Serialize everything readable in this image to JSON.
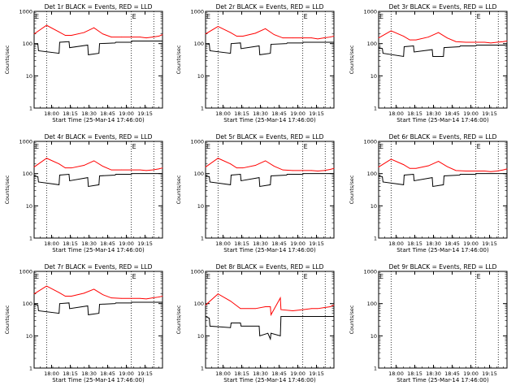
{
  "colors": {
    "events": "#000000",
    "lld": "#ff0000",
    "axis": "#000000"
  },
  "common": {
    "xlabel": "Start Time (25-Mar-14 17:46:00)",
    "ylabel": "Counts/sec",
    "x_ticks": [
      "18:00",
      "18:15",
      "18:30",
      "18:45",
      "19:00",
      "19:15"
    ],
    "y_ticks": [
      "1",
      "10",
      "100",
      "1000"
    ],
    "yscale": "log",
    "ylim": [
      1,
      1000
    ],
    "xlim_minutes_after_start": [
      0,
      103
    ],
    "event_marker": "E",
    "event_marker_times_minutes_after_start": [
      0,
      78
    ],
    "dotted_vline_times_minutes_after_start": [
      10,
      78,
      96
    ]
  },
  "chart_data": [
    {
      "type": "line",
      "title": "Det 1r BLACK = Events, RED = LLD",
      "series": [
        {
          "color": "red",
          "x": [
            0,
            10,
            20,
            25,
            30,
            40,
            48,
            55,
            62,
            70,
            78,
            85,
            90,
            95,
            100,
            103
          ],
          "values": [
            200,
            370,
            230,
            180,
            180,
            220,
            310,
            200,
            160,
            160,
            160,
            160,
            150,
            160,
            170,
            190
          ]
        },
        {
          "color": "black",
          "x": [
            0,
            3,
            3.5,
            20,
            20.5,
            28,
            28.5,
            43,
            43.5,
            52,
            52.5,
            65,
            65.5,
            78,
            78.5,
            103
          ],
          "values": [
            100,
            95,
            60,
            50,
            110,
            115,
            75,
            90,
            45,
            50,
            100,
            105,
            110,
            110,
            120,
            120
          ]
        }
      ]
    },
    {
      "type": "line",
      "title": "Det 2r BLACK = Events, RED = LLD",
      "series": [
        {
          "color": "red",
          "x": [
            0,
            10,
            20,
            25,
            30,
            40,
            48,
            55,
            62,
            70,
            78,
            85,
            90,
            95,
            100,
            103
          ],
          "values": [
            200,
            340,
            220,
            170,
            170,
            210,
            290,
            190,
            150,
            150,
            150,
            150,
            140,
            150,
            160,
            170
          ]
        },
        {
          "color": "black",
          "x": [
            0,
            3,
            3.5,
            20,
            20.5,
            28,
            28.5,
            43,
            43.5,
            52,
            52.5,
            65,
            65.5,
            78,
            78.5,
            103
          ],
          "values": [
            100,
            95,
            60,
            50,
            100,
            105,
            70,
            85,
            45,
            50,
            95,
            100,
            105,
            105,
            110,
            110
          ]
        }
      ]
    },
    {
      "type": "line",
      "title": "Det 3r BLACK = Events, RED = LLD",
      "series": [
        {
          "color": "red",
          "x": [
            0,
            10,
            20,
            25,
            30,
            40,
            48,
            55,
            62,
            70,
            78,
            85,
            90,
            95,
            100,
            103
          ],
          "values": [
            150,
            250,
            170,
            130,
            130,
            160,
            220,
            150,
            115,
            110,
            110,
            110,
            105,
            110,
            115,
            120
          ]
        },
        {
          "color": "black",
          "x": [
            0,
            3,
            3.5,
            20,
            20.5,
            28,
            28.5,
            43,
            43.5,
            52,
            52.5,
            65,
            65.5,
            78,
            78.5,
            103
          ],
          "values": [
            75,
            70,
            50,
            40,
            80,
            85,
            55,
            65,
            40,
            40,
            75,
            80,
            85,
            85,
            90,
            90
          ]
        }
      ]
    },
    {
      "type": "line",
      "title": "Det 4r BLACK = Events, RED = LLD",
      "series": [
        {
          "color": "red",
          "x": [
            0,
            10,
            20,
            25,
            30,
            40,
            48,
            55,
            62,
            70,
            78,
            85,
            90,
            95,
            100,
            103
          ],
          "values": [
            160,
            300,
            200,
            150,
            150,
            180,
            250,
            170,
            130,
            130,
            130,
            130,
            125,
            130,
            140,
            150
          ]
        },
        {
          "color": "black",
          "x": [
            0,
            3,
            3.5,
            20,
            20.5,
            28,
            28.5,
            43,
            43.5,
            52,
            52.5,
            65,
            65.5,
            78,
            78.5,
            103
          ],
          "values": [
            85,
            80,
            55,
            45,
            90,
            95,
            60,
            75,
            40,
            45,
            85,
            90,
            95,
            95,
            100,
            100
          ]
        }
      ]
    },
    {
      "type": "line",
      "title": "Det 5r BLACK = Events, RED = LLD",
      "series": [
        {
          "color": "red",
          "x": [
            0,
            10,
            20,
            25,
            30,
            40,
            48,
            55,
            62,
            70,
            78,
            85,
            90,
            95,
            100,
            103
          ],
          "values": [
            160,
            300,
            200,
            150,
            150,
            180,
            250,
            170,
            130,
            125,
            125,
            125,
            120,
            125,
            135,
            145
          ]
        },
        {
          "color": "black",
          "x": [
            0,
            3,
            3.5,
            20,
            20.5,
            28,
            28.5,
            43,
            43.5,
            52,
            52.5,
            65,
            65.5,
            78,
            78.5,
            103
          ],
          "values": [
            85,
            80,
            55,
            45,
            90,
            95,
            60,
            75,
            40,
            45,
            85,
            90,
            95,
            95,
            100,
            100
          ]
        }
      ]
    },
    {
      "type": "line",
      "title": "Det 6r BLACK = Events, RED = LLD",
      "series": [
        {
          "color": "red",
          "x": [
            0,
            10,
            20,
            25,
            30,
            40,
            48,
            55,
            62,
            70,
            78,
            85,
            90,
            95,
            100,
            103
          ],
          "values": [
            160,
            280,
            190,
            145,
            145,
            175,
            240,
            165,
            125,
            120,
            120,
            120,
            115,
            120,
            130,
            140
          ]
        },
        {
          "color": "black",
          "x": [
            0,
            3,
            3.5,
            20,
            20.5,
            28,
            28.5,
            43,
            43.5,
            52,
            52.5,
            65,
            65.5,
            78,
            78.5,
            103
          ],
          "values": [
            85,
            80,
            55,
            45,
            90,
            95,
            60,
            75,
            40,
            45,
            85,
            90,
            95,
            95,
            100,
            100
          ]
        }
      ]
    },
    {
      "type": "line",
      "title": "Det 7r BLACK = Events, RED = LLD",
      "series": [
        {
          "color": "red",
          "x": [
            0,
            10,
            20,
            25,
            30,
            40,
            48,
            55,
            62,
            70,
            78,
            85,
            90,
            95,
            100,
            103
          ],
          "values": [
            200,
            350,
            220,
            170,
            170,
            210,
            280,
            190,
            150,
            145,
            145,
            145,
            140,
            150,
            160,
            170
          ]
        },
        {
          "color": "black",
          "x": [
            0,
            3,
            3.5,
            20,
            20.5,
            28,
            28.5,
            43,
            43.5,
            52,
            52.5,
            65,
            65.5,
            78,
            78.5,
            103
          ],
          "values": [
            95,
            90,
            60,
            50,
            100,
            105,
            70,
            85,
            45,
            50,
            95,
            100,
            105,
            105,
            110,
            110
          ]
        }
      ]
    },
    {
      "type": "line",
      "title": "Det 8r BLACK = Events, RED = LLD",
      "series": [
        {
          "color": "red",
          "x": [
            0,
            10,
            20,
            28,
            40,
            48,
            52,
            52.5,
            60,
            60.5,
            70,
            78,
            85,
            90,
            95,
            100,
            103
          ],
          "values": [
            90,
            200,
            120,
            70,
            70,
            80,
            80,
            45,
            150,
            65,
            60,
            65,
            70,
            70,
            75,
            80,
            90
          ]
        },
        {
          "color": "black",
          "x": [
            0,
            3,
            3.5,
            20,
            20.5,
            28,
            28.5,
            43,
            43.5,
            50,
            52,
            52.5,
            60,
            60.5,
            70,
            78,
            103
          ],
          "values": [
            40,
            35,
            20,
            18,
            25,
            25,
            20,
            20,
            10,
            12,
            8,
            12,
            10,
            40,
            40,
            40,
            40
          ]
        }
      ]
    },
    {
      "type": "line",
      "title": "Det 9r BLACK = Events, RED = LLD",
      "series": []
    }
  ]
}
